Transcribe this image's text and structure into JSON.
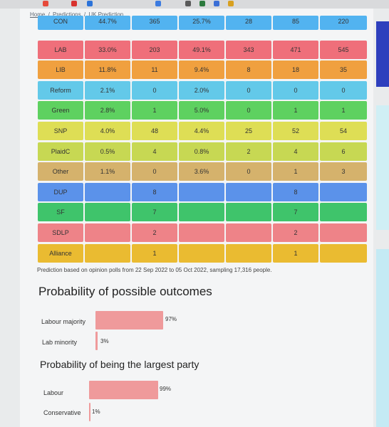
{
  "breadcrumb": {
    "home": "Home",
    "sep": "/",
    "predictions": "Predictions",
    "current": "UK Prediction"
  },
  "colors": {
    "CON": "#52b3f0",
    "LAB": "#ef6f7a",
    "LIB": "#f0a03f",
    "Reform": "#63c9e9",
    "Green": "#5ed160",
    "SNP": "#dede55",
    "PlaidC": "#c7d853",
    "Other": "#d5b26c",
    "DUP": "#5b92ea",
    "SF": "#3fc46b",
    "SDLP": "#ee8388",
    "Alliance": "#eabb31"
  },
  "rows": [
    {
      "party": "CON",
      "c1": "44.7%",
      "c2": "365",
      "c3": "25.7%",
      "c4": "28",
      "c5": "85",
      "c6": "220"
    },
    {
      "party": "LAB",
      "c1": "33.0%",
      "c2": "203",
      "c3": "49.1%",
      "c4": "343",
      "c5": "471",
      "c6": "545"
    },
    {
      "party": "LIB",
      "c1": "11.8%",
      "c2": "11",
      "c3": "9.4%",
      "c4": "8",
      "c5": "18",
      "c6": "35"
    },
    {
      "party": "Reform",
      "c1": "2.1%",
      "c2": "0",
      "c3": "2.0%",
      "c4": "0",
      "c5": "0",
      "c6": "0"
    },
    {
      "party": "Green",
      "c1": "2.8%",
      "c2": "1",
      "c3": "5.0%",
      "c4": "0",
      "c5": "1",
      "c6": "1"
    },
    {
      "party": "SNP",
      "c1": "4.0%",
      "c2": "48",
      "c3": "4.4%",
      "c4": "25",
      "c5": "52",
      "c6": "54"
    },
    {
      "party": "PlaidC",
      "c1": "0.5%",
      "c2": "4",
      "c3": "0.8%",
      "c4": "2",
      "c5": "4",
      "c6": "6"
    },
    {
      "party": "Other",
      "c1": "1.1%",
      "c2": "0",
      "c3": "3.6%",
      "c4": "0",
      "c5": "1",
      "c6": "3"
    },
    {
      "party": "DUP",
      "c1": "",
      "c2": "8",
      "c3": "",
      "c4": "",
      "c5": "8",
      "c6": ""
    },
    {
      "party": "SF",
      "c1": "",
      "c2": "7",
      "c3": "",
      "c4": "",
      "c5": "7",
      "c6": ""
    },
    {
      "party": "SDLP",
      "c1": "",
      "c2": "2",
      "c3": "",
      "c4": "",
      "c5": "2",
      "c6": ""
    },
    {
      "party": "Alliance",
      "c1": "",
      "c2": "1",
      "c3": "",
      "c4": "",
      "c5": "1",
      "c6": ""
    }
  ],
  "note": "Prediction based on opinion polls from 22 Sep 2022 to 05 Oct 2022, sampling 17,316 people.",
  "outcomes": {
    "title": "Probability of possible outcomes",
    "items": [
      {
        "label": "Labour majority",
        "value": "97%",
        "fraction": 0.97
      },
      {
        "label": "Lab minority",
        "value": "3%",
        "fraction": 0.03
      }
    ]
  },
  "largest": {
    "title": "Probability of being the largest party",
    "items": [
      {
        "label": "Labour",
        "value": "99%",
        "fraction": 0.99
      },
      {
        "label": "Conservative",
        "value": "1%",
        "fraction": 0.01
      }
    ]
  }
}
